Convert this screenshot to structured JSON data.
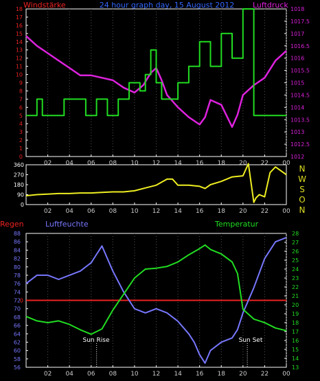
{
  "header": {
    "title_left": "Windstärke",
    "title_center": "24 hour graph day, 15 August 2012",
    "title_right": "Luftdruck"
  },
  "colors": {
    "wind": "#22dd22",
    "pressure": "#dd22dd",
    "direction": "#eeee22",
    "rain": "#ee2222",
    "humidity": "#7777ff",
    "temperature": "#22dd22",
    "frame": "#ffffff",
    "grid": "#555555",
    "bg": "#000000"
  },
  "bottom_labels": {
    "rain": "Regen",
    "humidity": "Luftfeuchte",
    "temperature": "Temperatur"
  },
  "compass": [
    "N",
    "W",
    "S",
    "O",
    "N"
  ],
  "x_ticks": [
    "02",
    "04",
    "06",
    "08",
    "10",
    "12",
    "14",
    "16",
    "18",
    "20",
    "22",
    "00"
  ],
  "annotations": {
    "sunrise": "Sun Rise",
    "sunset": "Sun Set"
  },
  "chart_data": [
    {
      "type": "line",
      "title": "24 hour graph day, 15 August 2012",
      "x_unit": "hour",
      "xlim": [
        0,
        24
      ],
      "y_left_ticks": [
        "0",
        "1",
        "2",
        "3",
        "4",
        "5",
        "6",
        "7",
        "8",
        "9",
        "10",
        "11",
        "12",
        "13",
        "14",
        "15",
        "16",
        "17",
        "18"
      ],
      "y_right_ticks": [
        "1012",
        "1012.5",
        "1013",
        "1013.5",
        "1014",
        "1014.5",
        "1015",
        "1015.5",
        "1016",
        "1016.5",
        "1017",
        "1017.5",
        "1018"
      ],
      "ylim_left": [
        0,
        18
      ],
      "ylim_right": [
        1012,
        1018
      ],
      "series": [
        {
          "name": "Windstärke",
          "axis": "left",
          "step": true,
          "x": [
            0,
            1,
            1.5,
            3.5,
            4.5,
            5.5,
            6.5,
            7.5,
            8.0,
            8.5,
            9.5,
            10.5,
            11.0,
            11.5,
            12.0,
            12.5,
            14.0,
            15.0,
            16.0,
            17.0,
            18.0,
            19.0,
            20.0,
            21.0,
            22.0,
            23.0,
            24.0
          ],
          "values": [
            5,
            7,
            5,
            7,
            7,
            5,
            7,
            5,
            5,
            7,
            9,
            8,
            10,
            13,
            9,
            7,
            9,
            11,
            14,
            11,
            15,
            12,
            18,
            5,
            5,
            5,
            5
          ]
        },
        {
          "name": "Luftdruck",
          "axis": "right",
          "x": [
            0,
            1,
            2,
            3,
            4,
            5,
            6,
            7,
            8,
            9,
            10,
            10.8,
            11.5,
            12,
            12.5,
            13,
            14,
            15,
            16,
            16.5,
            17,
            18,
            19,
            19.5,
            20,
            21,
            22,
            23,
            24
          ],
          "values": [
            1016.9,
            1016.5,
            1016.2,
            1015.9,
            1015.6,
            1015.3,
            1015.3,
            1015.2,
            1015.1,
            1014.8,
            1014.6,
            1014.9,
            1015.4,
            1015.6,
            1015.1,
            1014.5,
            1014.0,
            1013.6,
            1013.3,
            1013.6,
            1014.3,
            1014.1,
            1013.2,
            1013.7,
            1014.5,
            1014.9,
            1015.2,
            1015.9,
            1016.3
          ]
        }
      ]
    },
    {
      "type": "line",
      "title": "",
      "x_unit": "hour",
      "xlim": [
        0,
        24
      ],
      "y_ticks": [
        "0",
        "90",
        "180",
        "270",
        "360"
      ],
      "ylim": [
        0,
        360
      ],
      "series": [
        {
          "name": "",
          "x": [
            0,
            1,
            2,
            3,
            4,
            5,
            6,
            7,
            8,
            9,
            10,
            11,
            12,
            13,
            13.5,
            14,
            15,
            16,
            16.5,
            17,
            18,
            19,
            20,
            20.5,
            21,
            21.2,
            21.5,
            22,
            22.5,
            23,
            24
          ],
          "values": [
            80,
            90,
            95,
            100,
            100,
            105,
            105,
            110,
            115,
            115,
            125,
            150,
            175,
            230,
            230,
            175,
            175,
            165,
            145,
            180,
            210,
            250,
            260,
            370,
            20,
            60,
            90,
            70,
            290,
            340,
            270
          ]
        }
      ]
    },
    {
      "type": "line",
      "title": "",
      "x_unit": "hour",
      "xlim": [
        0,
        24
      ],
      "y_left_ticks": [
        "56",
        "58",
        "60",
        "62",
        "64",
        "66",
        "68",
        "70",
        "72",
        "74",
        "76",
        "78",
        "80",
        "82",
        "84",
        "86",
        "88"
      ],
      "y_right_ticks": [
        "13",
        "14",
        "15",
        "16",
        "17",
        "18",
        "19",
        "20",
        "21",
        "22",
        "23",
        "24",
        "25",
        "26",
        "27",
        "28"
      ],
      "ylim_left": [
        56,
        88
      ],
      "ylim_right": [
        13,
        28
      ],
      "rain_marker": {
        "label": "0",
        "value": 72
      },
      "series": [
        {
          "name": "Luftfeuchte",
          "axis": "left",
          "x": [
            0,
            1,
            2,
            3,
            4,
            5,
            6,
            6.5,
            7,
            7.5,
            8,
            9,
            9.5,
            10,
            11,
            12,
            13,
            14,
            15,
            15.5,
            16,
            16.5,
            17,
            18,
            19,
            19.5,
            20,
            21,
            22,
            23,
            24
          ],
          "values": [
            76,
            78,
            78,
            77,
            78,
            79,
            81,
            83,
            85,
            82,
            79,
            74,
            72,
            70,
            69,
            70,
            69,
            67,
            64,
            62,
            59,
            57,
            60,
            62,
            63,
            65,
            69,
            75,
            82,
            86,
            87
          ]
        },
        {
          "name": "Temperatur",
          "axis": "right",
          "x": [
            0,
            1,
            2,
            3,
            4,
            5,
            6,
            7,
            8,
            9,
            10,
            11,
            12,
            13,
            14,
            15,
            16,
            16.5,
            17,
            18,
            19,
            19.5,
            20,
            21,
            22,
            23,
            24
          ],
          "values": [
            18.7,
            18.2,
            18.0,
            18.2,
            17.8,
            17.2,
            16.7,
            17.3,
            19.4,
            21.2,
            23.0,
            24.0,
            24.1,
            24.3,
            24.8,
            25.6,
            26.3,
            26.7,
            26.2,
            25.7,
            24.8,
            23.5,
            19.5,
            18.4,
            18.0,
            17.4,
            17.1
          ]
        }
      ]
    }
  ]
}
